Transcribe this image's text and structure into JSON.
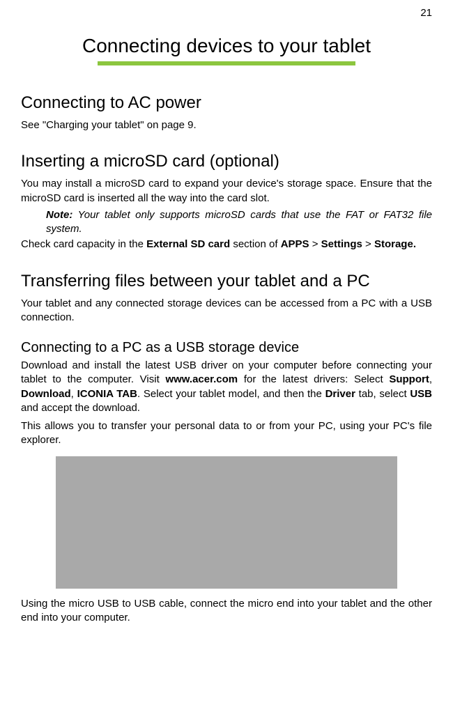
{
  "page_number": "21",
  "main_title": "Connecting devices to your tablet",
  "underline_color": "#8cc63f",
  "sections": {
    "ac_power": {
      "heading": "Connecting to AC power",
      "body1": "See \"Charging your tablet\" on page 9."
    },
    "microsd": {
      "heading": "Inserting a microSD card (optional)",
      "body1": "You may install a microSD card to expand your device's storage space. Ensure that the microSD card is inserted all the way into the card slot.",
      "note_label": "Note:",
      "note_text": " Your tablet only supports microSD cards that use the FAT or FAT32 file system.",
      "body2_pre": "Check card capacity in the ",
      "body2_b1": "External SD card",
      "body2_mid1": " section of ",
      "body2_b2": "APPS",
      "body2_gt1": " > ",
      "body2_b3": "Settings",
      "body2_gt2": " > ",
      "body2_b4": "Storage."
    },
    "transfer": {
      "heading": "Transferring files between your tablet and a PC",
      "body1": "Your tablet and any connected storage devices can be accessed from a PC with a USB connection."
    },
    "usb": {
      "heading": "Connecting to a PC as a USB storage device",
      "body1_pre": "Download and install the latest USB driver on your computer before connecting your tablet to the computer. Visit ",
      "body1_b1": "www.acer.com",
      "body1_mid1": " for the latest drivers: Select ",
      "body1_b2": "Support",
      "body1_c1": ", ",
      "body1_b3": "Download",
      "body1_c2": ", ",
      "body1_b4": "ICONIA TAB",
      "body1_mid2": ". Select your tablet model, and then the ",
      "body1_b5": "Driver",
      "body1_mid3": " tab, select ",
      "body1_b6": "USB",
      "body1_end": " and accept the download.",
      "body2": "This allows you to transfer your personal data to or from your PC, using your PC's file explorer.",
      "body3": "Using the micro USB to USB cable, connect the micro end into your tablet and the other end into your computer."
    }
  },
  "placeholder_color": "#a9a9a9"
}
